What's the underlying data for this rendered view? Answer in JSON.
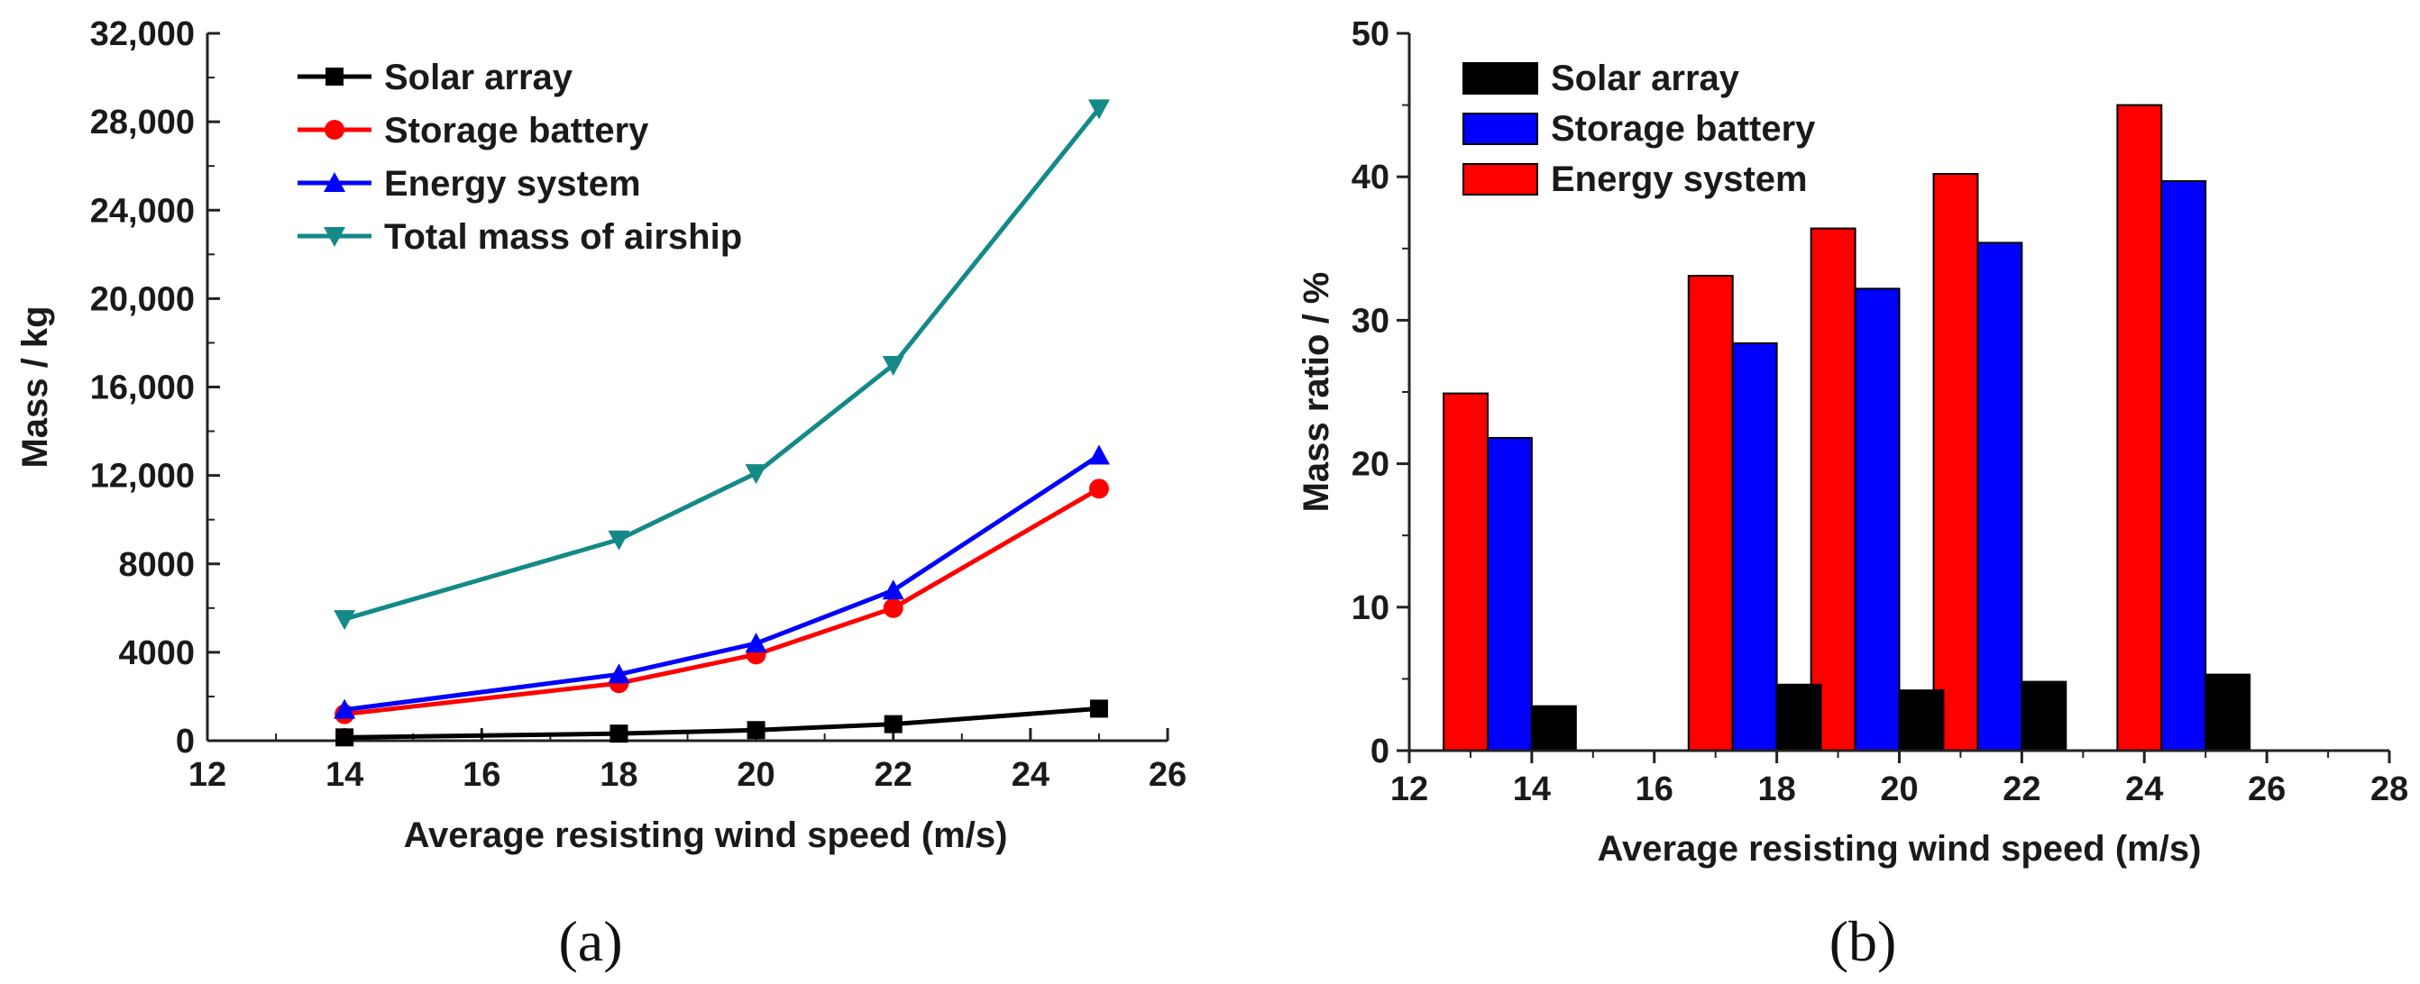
{
  "chart_data": [
    {
      "panel_label": "(a)",
      "type": "line",
      "x": [
        14,
        18,
        20,
        22,
        25
      ],
      "xlim": [
        12,
        26
      ],
      "xticks": [
        12,
        14,
        16,
        18,
        20,
        22,
        24,
        26
      ],
      "ylim": [
        0,
        32000
      ],
      "yticks": [
        0,
        4000,
        8000,
        12000,
        16000,
        20000,
        24000,
        28000,
        32000
      ],
      "ytick_labels": [
        "0",
        "4000",
        "8000",
        "12,000",
        "16,000",
        "20,000",
        "24,000",
        "28,000",
        "32,000"
      ],
      "xlabel": "Average resisting wind speed (m/s)",
      "ylabel": "Mass / kg",
      "legend_position": "top-left",
      "grid": false,
      "series": [
        {
          "name": "Solar array",
          "color": "#000000",
          "marker": "square",
          "values": [
            150,
            320,
            480,
            750,
            1450
          ]
        },
        {
          "name": "Storage battery",
          "color": "#ff0000",
          "marker": "circle",
          "values": [
            1200,
            2600,
            3900,
            6000,
            11400
          ]
        },
        {
          "name": "Energy system",
          "color": "#0000ff",
          "marker": "triangle-up",
          "values": [
            1400,
            3000,
            4400,
            6800,
            12900
          ]
        },
        {
          "name": "Total mass of airship",
          "color": "#138a87",
          "marker": "triangle-down",
          "values": [
            5500,
            9100,
            12100,
            17000,
            28600
          ]
        }
      ]
    },
    {
      "panel_label": "(b)",
      "type": "bar",
      "x": [
        14,
        18,
        20,
        22,
        25
      ],
      "xlim": [
        12,
        28
      ],
      "xticks": [
        12,
        14,
        16,
        18,
        20,
        22,
        24,
        26,
        28
      ],
      "ylim": [
        0,
        50
      ],
      "yticks": [
        0,
        10,
        20,
        30,
        40,
        50
      ],
      "xlabel": "Average resisting wind speed (m/s)",
      "ylabel": "Mass ratio / %",
      "legend_position": "top-left",
      "grid": false,
      "series": [
        {
          "name": "Solar array",
          "color": "#000000",
          "values": [
            3.1,
            4.6,
            4.2,
            4.8,
            5.3
          ]
        },
        {
          "name": "Storage battery",
          "color": "#0000ff",
          "values": [
            21.8,
            28.4,
            32.2,
            35.4,
            39.7
          ]
        },
        {
          "name": "Energy system",
          "color": "#ff0000",
          "values": [
            24.9,
            33.1,
            36.4,
            40.2,
            45.0
          ]
        }
      ],
      "bar_order": [
        "Energy system",
        "Storage battery",
        "Solar array"
      ]
    }
  ]
}
